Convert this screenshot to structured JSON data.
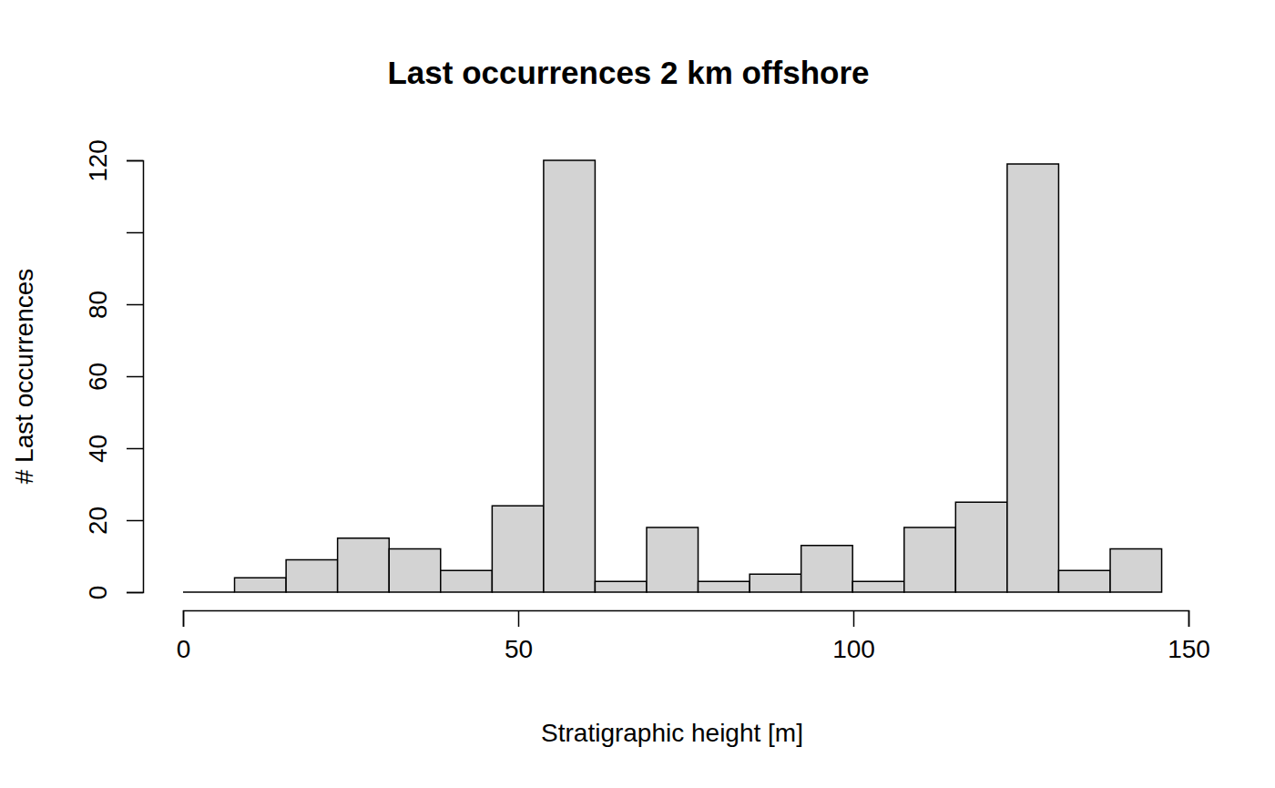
{
  "chart_data": {
    "type": "histogram",
    "title": "Last occurrences 2 km offshore",
    "x_label": "Stratigraphic height [m]",
    "y_label": "# Last occurrences",
    "bins": [
      0,
      7.68,
      15.37,
      23.05,
      30.74,
      38.42,
      46.11,
      53.79,
      61.47,
      69.16,
      76.84,
      84.53,
      92.21,
      99.89,
      107.58,
      115.26,
      122.95,
      130.63,
      138.32,
      146
    ],
    "counts": [
      0,
      4,
      9,
      15,
      12,
      6,
      24,
      120,
      3,
      18,
      3,
      5,
      13,
      3,
      18,
      25,
      119,
      6,
      12
    ],
    "color": "#d3d3d3",
    "xlim": [
      0,
      150
    ],
    "xticks": [
      0,
      50,
      100,
      150
    ],
    "ylim": [
      0,
      120
    ],
    "yticks": [
      0,
      20,
      40,
      60,
      80,
      {
        "value": 100,
        "label": null
      },
      120
    ]
  }
}
